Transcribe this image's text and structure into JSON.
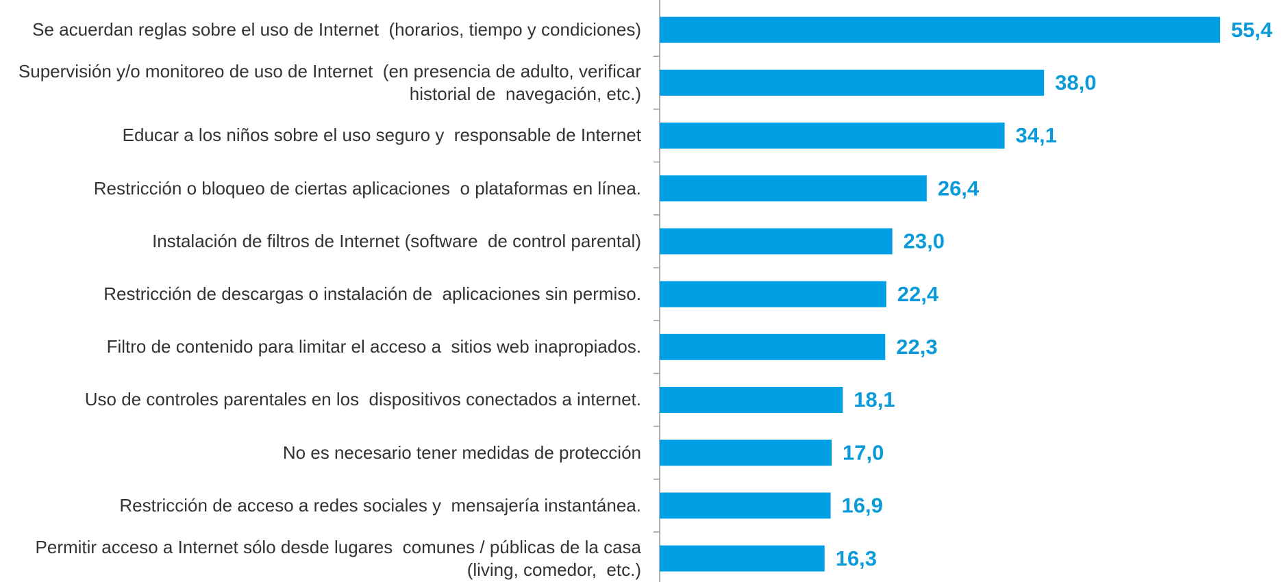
{
  "chart_data": {
    "type": "bar",
    "orientation": "horizontal",
    "categories": [
      "Se acuerdan reglas sobre el uso de Internet  (horarios, tiempo y condiciones)",
      "Supervisión y/o monitoreo de uso de Internet  (en presencia de adulto, verificar historial de  navegación, etc.)",
      "Educar a los niños sobre el uso seguro y  responsable de Internet",
      "Restricción o bloqueo de ciertas aplicaciones  o plataformas en línea.",
      "Instalación de filtros de Internet (software  de control parental)",
      "Restricción de descargas o instalación de  aplicaciones sin permiso.",
      "Filtro de contenido para limitar el acceso a  sitios web inapropiados.",
      "Uso de controles parentales en los  dispositivos conectados a internet.",
      "No es necesario tener medidas de protección",
      "Restricción de acceso a redes sociales y  mensajería instantánea.",
      "Permitir acceso a Internet sólo desde lugares  comunes / públicas de la casa (living, comedor,  etc.)"
    ],
    "values": [
      55.4,
      38.0,
      34.1,
      26.4,
      23.0,
      22.4,
      22.3,
      18.1,
      17.0,
      16.9,
      16.3
    ],
    "value_labels": [
      "55,4",
      "38,0",
      "34,1",
      "26,4",
      "23,0",
      "22,4",
      "22,3",
      "18,1",
      "17,0",
      "16,9",
      "16,3"
    ],
    "color": "#009fe3",
    "xlim": [
      0,
      60
    ]
  }
}
